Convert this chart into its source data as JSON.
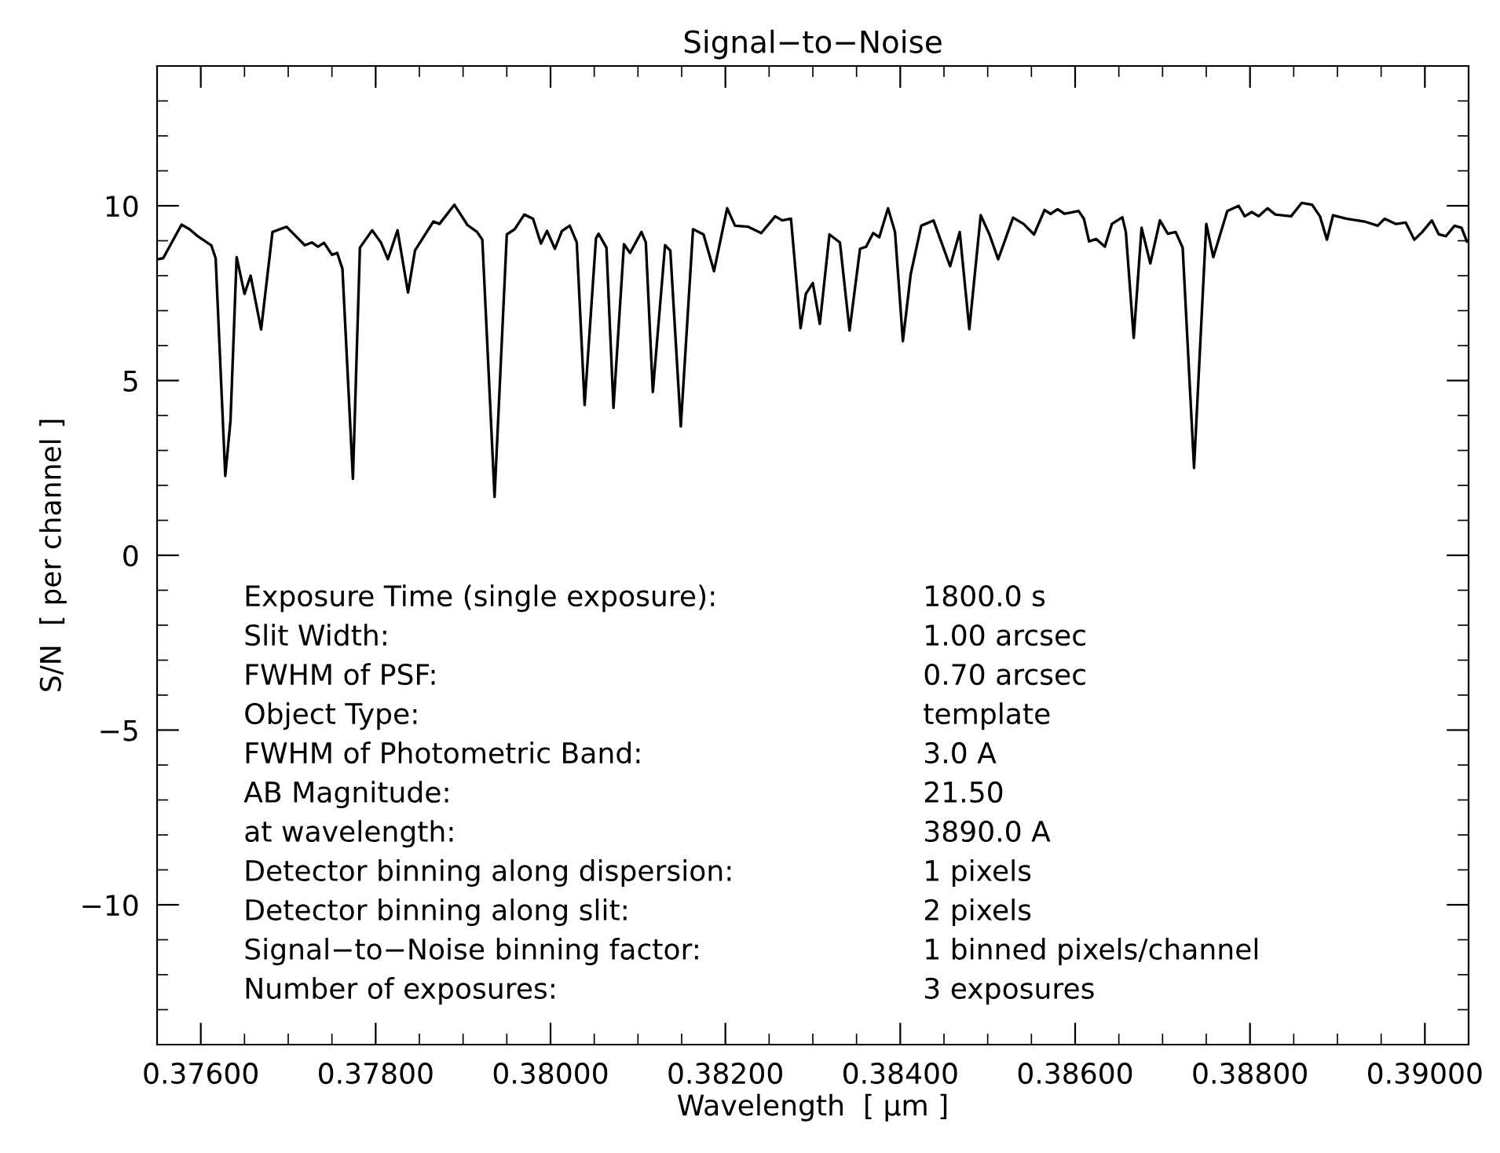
{
  "chart_data": {
    "type": "line",
    "title": "Signal−to−Noise",
    "xlabel": "Wavelength  [ μm ]",
    "ylabel": "S/N  [ per channel ]",
    "xlim": [
      0.3755,
      0.3905
    ],
    "ylim": [
      -14,
      14
    ],
    "xticks": [
      {
        "value": 0.3755,
        "label": null
      },
      {
        "value": 0.376,
        "label": "0.37600"
      },
      {
        "value": 0.3765,
        "label": null
      },
      {
        "value": 0.377,
        "label": null
      },
      {
        "value": 0.3775,
        "label": null
      },
      {
        "value": 0.378,
        "label": "0.37800"
      },
      {
        "value": 0.3785,
        "label": null
      },
      {
        "value": 0.379,
        "label": null
      },
      {
        "value": 0.3795,
        "label": null
      },
      {
        "value": 0.38,
        "label": "0.38000"
      },
      {
        "value": 0.3805,
        "label": null
      },
      {
        "value": 0.381,
        "label": null
      },
      {
        "value": 0.3815,
        "label": null
      },
      {
        "value": 0.382,
        "label": "0.38200"
      },
      {
        "value": 0.3825,
        "label": null
      },
      {
        "value": 0.383,
        "label": null
      },
      {
        "value": 0.3835,
        "label": null
      },
      {
        "value": 0.384,
        "label": "0.38400"
      },
      {
        "value": 0.3845,
        "label": null
      },
      {
        "value": 0.385,
        "label": null
      },
      {
        "value": 0.3855,
        "label": null
      },
      {
        "value": 0.386,
        "label": "0.38600"
      },
      {
        "value": 0.3865,
        "label": null
      },
      {
        "value": 0.387,
        "label": null
      },
      {
        "value": 0.3875,
        "label": null
      },
      {
        "value": 0.388,
        "label": "0.38800"
      },
      {
        "value": 0.3885,
        "label": null
      },
      {
        "value": 0.389,
        "label": null
      },
      {
        "value": 0.3895,
        "label": null
      },
      {
        "value": 0.39,
        "label": "0.39000"
      },
      {
        "value": 0.3905,
        "label": null
      }
    ],
    "yticks": [
      {
        "value": -14,
        "label": null
      },
      {
        "value": -13,
        "label": null
      },
      {
        "value": -12,
        "label": null
      },
      {
        "value": -11,
        "label": null
      },
      {
        "value": -10,
        "label": "−10"
      },
      {
        "value": -9,
        "label": null
      },
      {
        "value": -8,
        "label": null
      },
      {
        "value": -7,
        "label": null
      },
      {
        "value": -6,
        "label": null
      },
      {
        "value": -5,
        "label": "−5"
      },
      {
        "value": -4,
        "label": null
      },
      {
        "value": -3,
        "label": null
      },
      {
        "value": -2,
        "label": null
      },
      {
        "value": -1,
        "label": null
      },
      0,
      {
        "value": 1,
        "label": null
      },
      {
        "value": 2,
        "label": null
      },
      {
        "value": 3,
        "label": null
      },
      {
        "value": 4,
        "label": null
      },
      5,
      {
        "value": 6,
        "label": null
      },
      {
        "value": 7,
        "label": null
      },
      {
        "value": 8,
        "label": null
      },
      {
        "value": 9,
        "label": null
      },
      10,
      {
        "value": 11,
        "label": null
      },
      {
        "value": 12,
        "label": null
      },
      {
        "value": 13,
        "label": null
      },
      {
        "value": 14,
        "label": null
      }
    ],
    "grid": false,
    "legend": false,
    "marker": "none",
    "line_style": "solid",
    "series": [
      {
        "color": "#000000",
        "x": [
          0.3755,
          0.37557,
          0.37578,
          0.37587,
          0.37596,
          0.37612,
          0.37617,
          0.37628,
          0.37634,
          0.37641,
          0.3765,
          0.37657,
          0.37669,
          0.37682,
          0.37698,
          0.37719,
          0.37727,
          0.37734,
          0.37741,
          0.3775,
          0.37756,
          0.37762,
          0.37774,
          0.37782,
          0.37796,
          0.37806,
          0.37814,
          0.37825,
          0.37837,
          0.37845,
          0.37866,
          0.37873,
          0.3789,
          0.37905,
          0.37916,
          0.37922,
          0.37936,
          0.3795,
          0.37959,
          0.3797,
          0.3798,
          0.37989,
          0.37996,
          0.38005,
          0.38013,
          0.38022,
          0.3803,
          0.38039,
          0.38052,
          0.38055,
          0.38064,
          0.38072,
          0.38084,
          0.38091,
          0.38104,
          0.38109,
          0.38117,
          0.38131,
          0.38137,
          0.38149,
          0.38163,
          0.38175,
          0.38187,
          0.38202,
          0.38211,
          0.38226,
          0.38241,
          0.38257,
          0.38265,
          0.38275,
          0.38286,
          0.38292,
          0.383,
          0.38308,
          0.38319,
          0.38331,
          0.38342,
          0.38354,
          0.38361,
          0.38369,
          0.38376,
          0.38386,
          0.38394,
          0.38403,
          0.38412,
          0.38424,
          0.38438,
          0.38457,
          0.38468,
          0.38479,
          0.38492,
          0.38502,
          0.38512,
          0.38529,
          0.38541,
          0.38553,
          0.38565,
          0.38572,
          0.3858,
          0.38588,
          0.38604,
          0.3861,
          0.38616,
          0.38624,
          0.38634,
          0.38642,
          0.38654,
          0.38658,
          0.38667,
          0.38676,
          0.38686,
          0.38697,
          0.38706,
          0.38715,
          0.38723,
          0.38736,
          0.3875,
          0.38758,
          0.38774,
          0.38787,
          0.38794,
          0.38802,
          0.3881,
          0.3882,
          0.38829,
          0.38847,
          0.38859,
          0.38871,
          0.3888,
          0.38888,
          0.38895,
          0.3891,
          0.38931,
          0.38946,
          0.38954,
          0.38967,
          0.38978,
          0.38988,
          0.38997,
          0.39008,
          0.39016,
          0.39024,
          0.39034,
          0.39042,
          0.39048
        ],
        "values": [
          8.47,
          8.5,
          9.46,
          9.33,
          9.14,
          8.87,
          8.5,
          2.27,
          3.86,
          8.53,
          7.48,
          8.0,
          6.46,
          9.25,
          9.4,
          8.87,
          8.95,
          8.83,
          8.94,
          8.6,
          8.65,
          8.2,
          2.19,
          8.8,
          9.3,
          8.95,
          8.47,
          9.3,
          7.52,
          8.72,
          9.55,
          9.48,
          10.03,
          9.45,
          9.25,
          9.03,
          1.67,
          9.18,
          9.33,
          9.75,
          9.63,
          8.92,
          9.28,
          8.77,
          9.28,
          9.43,
          8.95,
          4.3,
          9.07,
          9.2,
          8.8,
          4.22,
          8.9,
          8.65,
          9.25,
          8.95,
          4.67,
          8.87,
          8.72,
          3.69,
          9.33,
          9.18,
          8.13,
          9.93,
          9.43,
          9.4,
          9.22,
          9.7,
          9.58,
          9.63,
          6.5,
          7.48,
          7.79,
          6.62,
          9.18,
          8.95,
          6.43,
          8.77,
          8.83,
          9.22,
          9.1,
          9.93,
          9.25,
          6.13,
          8.05,
          9.43,
          9.58,
          8.27,
          9.25,
          6.47,
          9.73,
          9.18,
          8.47,
          9.66,
          9.48,
          9.18,
          9.88,
          9.77,
          9.9,
          9.77,
          9.85,
          9.63,
          8.98,
          9.05,
          8.83,
          9.48,
          9.67,
          9.25,
          6.22,
          9.37,
          8.35,
          9.58,
          9.2,
          9.25,
          8.8,
          2.5,
          9.48,
          8.53,
          9.85,
          10.0,
          9.7,
          9.82,
          9.7,
          9.93,
          9.75,
          9.7,
          10.08,
          10.03,
          9.7,
          9.03,
          9.73,
          9.63,
          9.55,
          9.43,
          9.63,
          9.48,
          9.52,
          9.03,
          9.25,
          9.58,
          9.18,
          9.13,
          9.43,
          9.37,
          8.98
        ]
      }
    ],
    "annotations": [
      "Exposure Time (single exposure):",
      "1800.0 s",
      "Slit Width:",
      "1.00 arcsec",
      "FWHM of PSF:",
      "0.70 arcsec",
      "Object Type:",
      "template",
      "FWHM of Photometric Band:",
      "3.0 A",
      "AB Magnitude:",
      "21.50",
      "at wavelength:",
      "3890.0 A",
      "Detector binning along dispersion:",
      "1 pixels",
      "Detector binning along slit:",
      "2 pixels",
      "Signal−to−Noise binning factor:",
      "1 binned pixels/channel",
      "Number of exposures:",
      "3 exposures"
    ]
  }
}
